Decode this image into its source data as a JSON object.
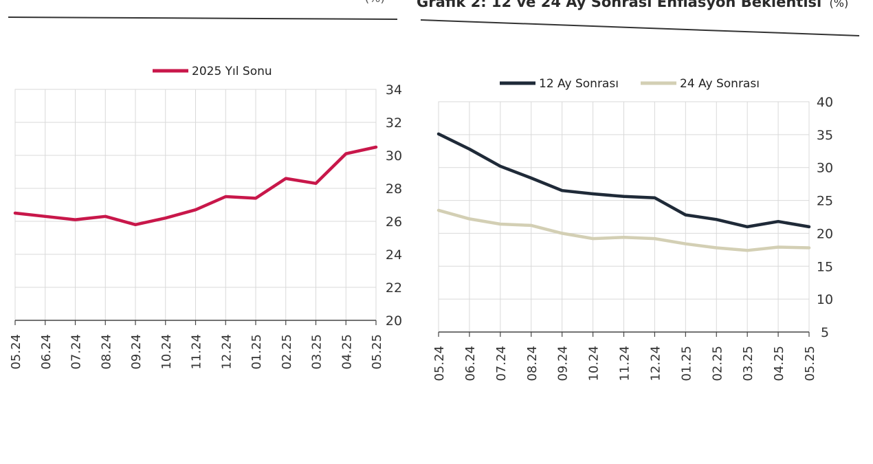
{
  "title_left": "(%)",
  "title_right": {
    "prefix": "Grafik 2: 12 ve 24 Ay Sonrası Enflasyon Beklentisi",
    "unit": "(%)"
  },
  "chart_data": [
    {
      "type": "line",
      "title": "",
      "categories": [
        "05.24",
        "06.24",
        "07.24",
        "08.24",
        "09.24",
        "10.24",
        "11.24",
        "12.24",
        "01.25",
        "02.25",
        "03.25",
        "04.25",
        "05.25"
      ],
      "series": [
        {
          "name": "2025 Yıl Sonu",
          "color": "#c8174a",
          "values": [
            26.5,
            26.3,
            26.1,
            26.3,
            25.8,
            26.2,
            26.7,
            27.5,
            27.4,
            28.6,
            28.3,
            30.1,
            30.5
          ]
        }
      ],
      "ylim": [
        20,
        34
      ],
      "yticks": [
        20,
        22,
        24,
        26,
        28,
        30,
        32,
        34
      ],
      "y_axis_side": "right",
      "grid": true,
      "legend": "top-center"
    },
    {
      "type": "line",
      "title": "12 ve 24 Ay Sonrası Enflasyon Beklentisi",
      "categories": [
        "05.24",
        "06.24",
        "07.24",
        "08.24",
        "09.24",
        "10.24",
        "11.24",
        "12.24",
        "01.25",
        "02.25",
        "03.25",
        "04.25",
        "05.25"
      ],
      "series": [
        {
          "name": "12 Ay Sonrası",
          "color": "#1f2a38",
          "values": [
            35.1,
            32.8,
            30.2,
            28.4,
            26.5,
            26.0,
            25.6,
            25.4,
            22.8,
            22.1,
            21.0,
            21.8,
            21.0
          ]
        },
        {
          "name": "24 Ay Sonrası",
          "color": "#d3cfb4",
          "values": [
            23.5,
            22.2,
            21.4,
            21.2,
            20.0,
            19.2,
            19.4,
            19.2,
            18.4,
            17.8,
            17.4,
            17.9,
            17.8
          ]
        }
      ],
      "ylim": [
        5,
        40
      ],
      "yticks": [
        5,
        10,
        15,
        20,
        25,
        30,
        35,
        40
      ],
      "y_axis_side": "right",
      "grid": true,
      "legend": "top-center"
    }
  ]
}
